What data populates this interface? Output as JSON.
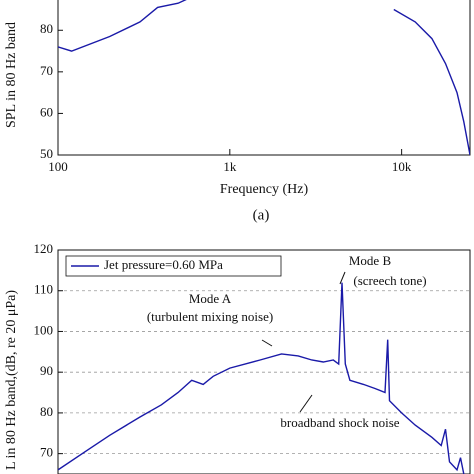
{
  "chart_data": [
    {
      "type": "line",
      "x_label": "Frequency (Hz)",
      "y_label": "SPL in 80 Hz band",
      "caption": "(a)",
      "xscale": "log",
      "xlim": [
        100,
        25000
      ],
      "xticks": [
        100,
        {
          "value": 1000,
          "label": "1k"
        },
        {
          "value": 10000,
          "label": "10k"
        }
      ],
      "ylim": [
        50,
        88
      ],
      "yticks": [
        50,
        60,
        70,
        80
      ],
      "grid": false,
      "color": "#1a1aa8",
      "x": [
        100,
        120,
        200,
        300,
        380,
        500,
        600,
        7000,
        9000,
        12000,
        15000,
        18000,
        21000,
        23000,
        25000
      ],
      "values": [
        76,
        75,
        78.5,
        82,
        85.5,
        86.5,
        88,
        null,
        85,
        82,
        78,
        72,
        65,
        58,
        50
      ]
    },
    {
      "type": "line",
      "y_label": "L in 80 Hz band,(dB, re 20 μPa)",
      "xscale": "log",
      "xlim": [
        100,
        25000
      ],
      "ylim": [
        65,
        120
      ],
      "yticks": [
        70,
        80,
        90,
        100,
        110,
        120
      ],
      "grid": true,
      "legend": "upper left",
      "x": [
        100,
        150,
        200,
        300,
        400,
        500,
        600,
        700,
        800,
        1000,
        1500,
        2000,
        2500,
        3000,
        3500,
        4000,
        4300,
        4500,
        4700,
        5000,
        6000,
        7000,
        8000,
        8300,
        8500,
        10000,
        12000,
        15000,
        17000,
        18000,
        19000,
        21000,
        22000,
        23000
      ],
      "series": [
        {
          "name": "Jet pressure=0.60 MPa",
          "color": "#1a1aa8",
          "values": [
            66,
            71,
            74.5,
            79,
            82,
            85,
            88,
            87,
            89,
            91,
            93,
            94.5,
            94,
            93,
            92.5,
            93,
            92,
            112,
            92,
            88,
            87,
            86,
            85,
            98,
            83,
            80,
            77,
            74,
            72,
            76,
            68,
            66,
            69,
            65
          ]
        }
      ],
      "annotations": [
        "Mode A",
        "(turbulent mixing noise)",
        "Mode B",
        "(screech tone)",
        "broadband shock noise"
      ]
    }
  ]
}
